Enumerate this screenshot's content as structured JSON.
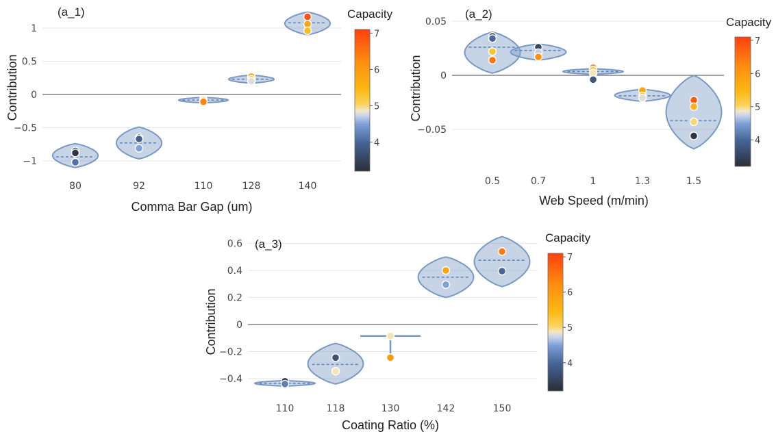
{
  "chart_data": [
    {
      "type": "violin",
      "panel_label": "(a_1)",
      "xlabel": "Comma Bar Gap (um)",
      "ylabel": "Contribution",
      "categories": [
        "80",
        "92",
        "110",
        "128",
        "140"
      ],
      "ylim": [
        -1.15,
        1.25
      ],
      "yticks": [
        -1,
        -0.5,
        0,
        0.5,
        1
      ],
      "ytick_labels": [
        "−1",
        "−0.5",
        "0",
        "0.5",
        "1"
      ],
      "zero_line": true,
      "grid": true,
      "violins": [
        {
          "category": "80",
          "min": -1.1,
          "max": -0.74,
          "mean": -0.94
        },
        {
          "category": "92",
          "min": -0.97,
          "max": -0.49,
          "mean": -0.73
        },
        {
          "category": "110",
          "min": -0.11,
          "max": -0.06,
          "mean": -0.085
        },
        {
          "category": "128",
          "min": 0.17,
          "max": 0.29,
          "mean": 0.23
        },
        {
          "category": "140",
          "min": 0.9,
          "max": 1.24,
          "mean": 1.08
        }
      ],
      "points": [
        {
          "category": "80",
          "y": -0.85,
          "capacity": 3.7
        },
        {
          "category": "80",
          "y": -0.88,
          "capacity": 3.3
        },
        {
          "category": "80",
          "y": -1.02,
          "capacity": 4.1
        },
        {
          "category": "92",
          "y": -0.65,
          "capacity": 3.6
        },
        {
          "category": "92",
          "y": -0.67,
          "capacity": 3.9
        },
        {
          "category": "92",
          "y": -0.81,
          "capacity": 4.5
        },
        {
          "category": "110",
          "y": -0.07,
          "capacity": 4.9
        },
        {
          "category": "110",
          "y": -0.09,
          "capacity": 5.4
        },
        {
          "category": "110",
          "y": -0.11,
          "capacity": 6.3
        },
        {
          "category": "128",
          "y": 0.27,
          "capacity": 5.7
        },
        {
          "category": "128",
          "y": 0.23,
          "capacity": 5.2
        },
        {
          "category": "128",
          "y": 0.2,
          "capacity": 4.8
        },
        {
          "category": "140",
          "y": 1.17,
          "capacity": 6.9
        },
        {
          "category": "140",
          "y": 1.06,
          "capacity": 5.8
        },
        {
          "category": "140",
          "y": 0.96,
          "capacity": 5.4
        }
      ],
      "colorbar": {
        "title": "Capacity",
        "min": 3.2,
        "max": 7.1,
        "ticks": [
          4,
          5,
          6,
          7
        ]
      }
    },
    {
      "type": "violin",
      "panel_label": "(a_2)",
      "xlabel": "Web Speed (m/min)",
      "ylabel": "Contribution",
      "categories": [
        "0.5",
        "0.7",
        "1",
        "1.3",
        "1.5"
      ],
      "ylim": [
        -0.068,
        0.055
      ],
      "yticks": [
        -0.05,
        0,
        0.05
      ],
      "ytick_labels": [
        "−0.05",
        "0",
        "0.05"
      ],
      "zero_line": true,
      "grid": true,
      "violins": [
        {
          "category": "0.5",
          "min": 0.002,
          "max": 0.04,
          "mean": 0.026
        },
        {
          "category": "0.7",
          "min": 0.014,
          "max": 0.029,
          "mean": 0.023
        },
        {
          "category": "1",
          "min": 0.003,
          "max": 0.004,
          "mean": 0.0035
        },
        {
          "category": "1.3",
          "min": -0.024,
          "max": -0.013,
          "mean": -0.019
        },
        {
          "category": "1.5",
          "min": -0.068,
          "max": 0.0,
          "mean": -0.042
        }
      ],
      "points": [
        {
          "category": "0.5",
          "y": 0.036,
          "capacity": 3.3
        },
        {
          "category": "0.5",
          "y": 0.034,
          "capacity": 4.0
        },
        {
          "category": "0.5",
          "y": 0.022,
          "capacity": 5.3
        },
        {
          "category": "0.5",
          "y": 0.014,
          "capacity": 6.5
        },
        {
          "category": "0.7",
          "y": 0.026,
          "capacity": 3.6
        },
        {
          "category": "0.7",
          "y": 0.021,
          "capacity": 4.7
        },
        {
          "category": "0.7",
          "y": 0.017,
          "capacity": 6.1
        },
        {
          "category": "1",
          "y": 0.007,
          "capacity": 6.4
        },
        {
          "category": "1",
          "y": 0.005,
          "capacity": 5.1
        },
        {
          "category": "1",
          "y": 0.002,
          "capacity": 4.9
        },
        {
          "category": "1",
          "y": -0.004,
          "capacity": 3.8
        },
        {
          "category": "1.3",
          "y": -0.014,
          "capacity": 5.8
        },
        {
          "category": "1.3",
          "y": -0.019,
          "capacity": 5.2
        },
        {
          "category": "1.3",
          "y": -0.021,
          "capacity": 4.8
        },
        {
          "category": "1.5",
          "y": -0.023,
          "capacity": 6.8
        },
        {
          "category": "1.5",
          "y": -0.029,
          "capacity": 5.6
        },
        {
          "category": "1.5",
          "y": -0.043,
          "capacity": 5.0
        },
        {
          "category": "1.5",
          "y": -0.056,
          "capacity": 3.3
        }
      ],
      "colorbar": {
        "title": "Capacity",
        "min": 3.2,
        "max": 7.1,
        "ticks": [
          4,
          5,
          6,
          7
        ]
      }
    },
    {
      "type": "violin",
      "panel_label": "(a_3)",
      "xlabel": "Coating Ratio (%)",
      "ylabel": "Contribution",
      "categories": [
        "110",
        "118",
        "130",
        "142",
        "150"
      ],
      "ylim": [
        -0.5,
        0.66
      ],
      "yticks": [
        -0.4,
        -0.2,
        0,
        0.2,
        0.4,
        0.6
      ],
      "ytick_labels": [
        "−0.4",
        "−0.2",
        "0",
        "0.2",
        "0.4",
        "0.6"
      ],
      "zero_line": true,
      "grid": true,
      "violins": [
        {
          "category": "110",
          "min": -0.455,
          "max": -0.41,
          "mean": -0.435
        },
        {
          "category": "118",
          "min": -0.44,
          "max": -0.14,
          "mean": -0.295
        },
        {
          "category": "130",
          "min": -0.245,
          "max": -0.085,
          "mean": -0.085,
          "flat": true
        },
        {
          "category": "142",
          "min": 0.2,
          "max": 0.5,
          "mean": 0.35
        },
        {
          "category": "150",
          "min": 0.28,
          "max": 0.65,
          "mean": 0.475
        }
      ],
      "points": [
        {
          "category": "110",
          "y": -0.42,
          "capacity": 3.3
        },
        {
          "category": "110",
          "y": -0.44,
          "capacity": 4.2
        },
        {
          "category": "118",
          "y": -0.245,
          "capacity": 3.7
        },
        {
          "category": "118",
          "y": -0.345,
          "capacity": 4.9
        },
        {
          "category": "130",
          "y": -0.085,
          "capacity": 4.9
        },
        {
          "category": "130",
          "y": -0.245,
          "capacity": 6.0
        },
        {
          "category": "142",
          "y": 0.4,
          "capacity": 5.8
        },
        {
          "category": "142",
          "y": 0.295,
          "capacity": 4.5
        },
        {
          "category": "150",
          "y": 0.54,
          "capacity": 6.4
        },
        {
          "category": "150",
          "y": 0.395,
          "capacity": 4.0
        }
      ],
      "colorbar": {
        "title": "Capacity",
        "min": 3.2,
        "max": 7.1,
        "ticks": [
          4,
          5,
          6,
          7
        ]
      }
    }
  ]
}
